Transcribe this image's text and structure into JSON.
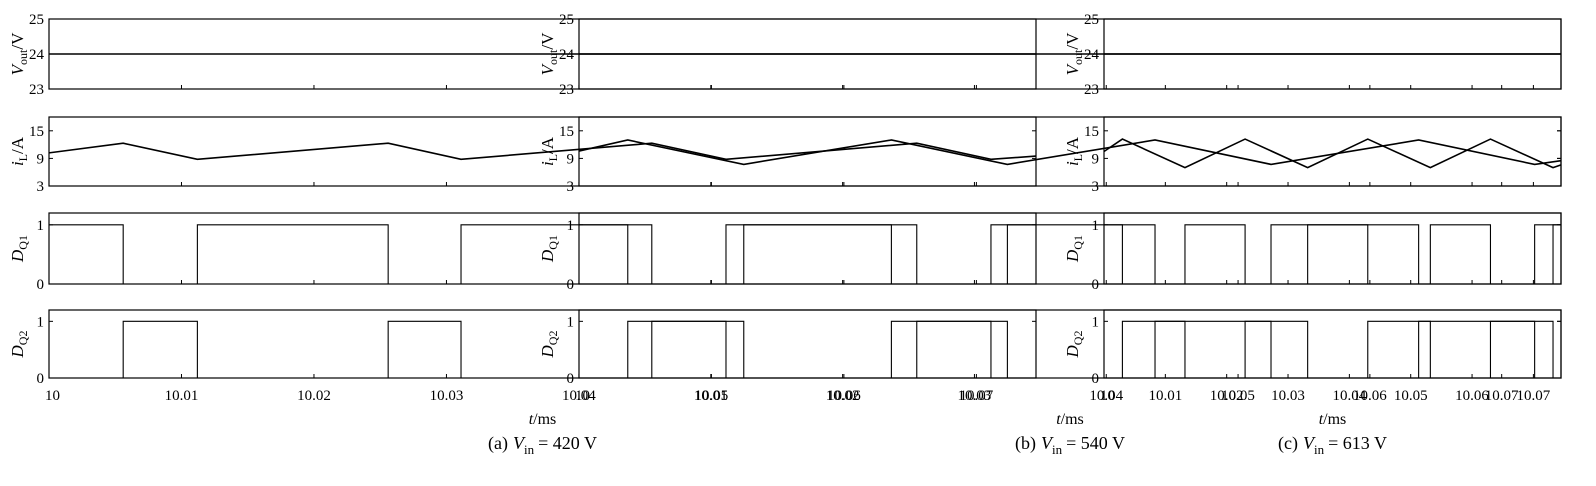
{
  "colors": {
    "trace": "#000000",
    "axis": "#000000"
  },
  "charts": [
    {
      "caption_prefix": "(a)",
      "caption_sym": "V",
      "caption_sub": "in",
      "caption_value": "= 420 V"
    },
    {
      "caption_prefix": "(b)",
      "caption_sym": "V",
      "caption_sub": "in",
      "caption_value": "= 540 V"
    },
    {
      "caption_prefix": "(c)",
      "caption_sym": "V",
      "caption_sub": "in",
      "caption_value": "= 613 V"
    }
  ],
  "rows": [
    {
      "ylabel_sym": "V",
      "ylabel_sub": "out",
      "ylabel_unit": "/V",
      "ticks": [
        23,
        24,
        25
      ]
    },
    {
      "ylabel_sym": "i",
      "ylabel_sub": "L",
      "ylabel_unit": "/A",
      "ticks": [
        3,
        9,
        15
      ]
    },
    {
      "ylabel_sym": "D",
      "ylabel_sub": "Q1",
      "ylabel_unit": "",
      "ticks": [
        0,
        1
      ]
    },
    {
      "ylabel_sym": "D",
      "ylabel_sub": "Q2",
      "ylabel_unit": "",
      "ticks": [
        0,
        1
      ]
    }
  ],
  "xaxis": {
    "label_sym": "t",
    "label_unit": "/ms",
    "ticks": [
      "10",
      "10.01",
      "10.02",
      "10.03",
      "10.04",
      "10.05",
      "10.06",
      "10.07"
    ]
  },
  "chart_data": [
    {
      "type": "line",
      "title": "(a) Vin = 420 V",
      "xlabel": "t/ms",
      "xlim": [
        10,
        10.0745
      ],
      "subplots": [
        {
          "ylabel": "Vout/V",
          "ylim": [
            23,
            25
          ],
          "series": [
            {
              "x": [
                10,
                10.0745
              ],
              "y": [
                24,
                24
              ]
            }
          ]
        },
        {
          "ylabel": "iL/A",
          "ylim": [
            3,
            18
          ],
          "series": [
            {
              "x": [
                10,
                10.0056,
                10.0112,
                10.0256,
                10.0311,
                10.0455,
                10.0511,
                10.0655,
                10.0711,
                10.0745
              ],
              "y": [
                10.2,
                12.3,
                8.8,
                12.3,
                8.8,
                12.3,
                8.8,
                12.3,
                8.8,
                9.5
              ]
            }
          ]
        },
        {
          "ylabel": "DQ1",
          "ylim": [
            0,
            1.2
          ],
          "series": [
            {
              "x": [
                10,
                10.0056,
                10.0056,
                10.0112,
                10.0112,
                10.0256,
                10.0256,
                10.0311,
                10.0311,
                10.0455,
                10.0455,
                10.0511,
                10.0511,
                10.0655,
                10.0655,
                10.0711,
                10.0711,
                10.0745
              ],
              "y": [
                1,
                1,
                0,
                0,
                1,
                1,
                0,
                0,
                1,
                1,
                0,
                0,
                1,
                1,
                0,
                0,
                1,
                1
              ]
            }
          ]
        },
        {
          "ylabel": "DQ2",
          "ylim": [
            0,
            1.2
          ],
          "series": [
            {
              "x": [
                10,
                10.0056,
                10.0056,
                10.0112,
                10.0112,
                10.0256,
                10.0256,
                10.0311,
                10.0311,
                10.0455,
                10.0455,
                10.0511,
                10.0511,
                10.0655,
                10.0655,
                10.0711,
                10.0711,
                10.0745
              ],
              "y": [
                0,
                0,
                1,
                1,
                0,
                0,
                1,
                1,
                0,
                0,
                1,
                1,
                0,
                0,
                1,
                1,
                0,
                0
              ]
            }
          ]
        }
      ]
    },
    {
      "type": "line",
      "title": "(b) Vin = 540 V",
      "xlabel": "t/ms",
      "xlim": [
        10,
        10.0745
      ],
      "subplots": [
        {
          "ylabel": "Vout/V",
          "ylim": [
            23,
            25
          ],
          "series": [
            {
              "x": [
                10,
                10.0745
              ],
              "y": [
                24,
                24
              ]
            }
          ]
        },
        {
          "ylabel": "iL/A",
          "ylim": [
            3,
            18
          ],
          "series": [
            {
              "x": [
                10,
                10.0037,
                10.0125,
                10.0237,
                10.0325,
                10.0437,
                10.0525,
                10.0637,
                10.0725,
                10.0745
              ],
              "y": [
                10.6,
                13.0,
                7.7,
                13.0,
                7.7,
                13.0,
                7.7,
                13.0,
                7.7,
                8.5
              ]
            }
          ]
        },
        {
          "ylabel": "DQ1",
          "ylim": [
            0,
            1.2
          ],
          "series": [
            {
              "x": [
                10,
                10.0037,
                10.0037,
                10.0125,
                10.0125,
                10.0237,
                10.0237,
                10.0325,
                10.0325,
                10.0437,
                10.0437,
                10.0525,
                10.0525,
                10.0637,
                10.0637,
                10.0725,
                10.0725,
                10.0745
              ],
              "y": [
                1,
                1,
                0,
                0,
                1,
                1,
                0,
                0,
                1,
                1,
                0,
                0,
                1,
                1,
                0,
                0,
                1,
                1
              ]
            }
          ]
        },
        {
          "ylabel": "DQ2",
          "ylim": [
            0,
            1.2
          ],
          "series": [
            {
              "x": [
                10,
                10.0037,
                10.0037,
                10.0125,
                10.0125,
                10.0237,
                10.0237,
                10.0325,
                10.0325,
                10.0437,
                10.0437,
                10.0525,
                10.0525,
                10.0637,
                10.0637,
                10.0725,
                10.0725,
                10.0745
              ],
              "y": [
                0,
                0,
                1,
                1,
                0,
                0,
                1,
                1,
                0,
                0,
                1,
                1,
                0,
                0,
                1,
                1,
                0,
                0
              ]
            }
          ]
        }
      ]
    },
    {
      "type": "line",
      "title": "(c) Vin = 613 V",
      "xlabel": "t/ms",
      "xlim": [
        10,
        10.0745
      ],
      "subplots": [
        {
          "ylabel": "Vout/V",
          "ylim": [
            23,
            25
          ],
          "series": [
            {
              "x": [
                10,
                10.0745
              ],
              "y": [
                24,
                24
              ]
            }
          ]
        },
        {
          "ylabel": "iL/A",
          "ylim": [
            3,
            18
          ],
          "series": [
            {
              "x": [
                10,
                10.003,
                10.0132,
                10.023,
                10.0332,
                10.043,
                10.0532,
                10.063,
                10.0732,
                10.0745
              ],
              "y": [
                10.5,
                13.2,
                7.0,
                13.2,
                7.0,
                13.2,
                7.0,
                13.2,
                7.0,
                7.6
              ]
            }
          ]
        },
        {
          "ylabel": "DQ1",
          "ylim": [
            0,
            1.2
          ],
          "series": [
            {
              "x": [
                10,
                10.003,
                10.003,
                10.0132,
                10.0132,
                10.023,
                10.023,
                10.0332,
                10.0332,
                10.043,
                10.043,
                10.0532,
                10.0532,
                10.063,
                10.063,
                10.0732,
                10.0732,
                10.0745
              ],
              "y": [
                1,
                1,
                0,
                0,
                1,
                1,
                0,
                0,
                1,
                1,
                0,
                0,
                1,
                1,
                0,
                0,
                1,
                1
              ]
            }
          ]
        },
        {
          "ylabel": "DQ2",
          "ylim": [
            0,
            1.2
          ],
          "series": [
            {
              "x": [
                10,
                10.003,
                10.003,
                10.0132,
                10.0132,
                10.023,
                10.023,
                10.0332,
                10.0332,
                10.043,
                10.043,
                10.0532,
                10.0532,
                10.063,
                10.063,
                10.0732,
                10.0732,
                10.0745
              ],
              "y": [
                0,
                0,
                1,
                1,
                0,
                0,
                1,
                1,
                0,
                0,
                1,
                1,
                0,
                0,
                1,
                1,
                0,
                0
              ]
            }
          ]
        }
      ]
    }
  ]
}
